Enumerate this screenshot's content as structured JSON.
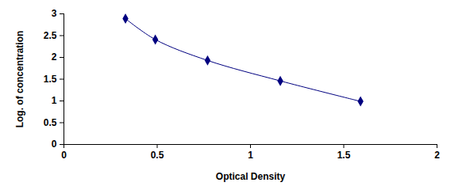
{
  "chart_data": {
    "type": "line",
    "x_label": "Optical Density",
    "y_label": "Log. of concentration",
    "x": [
      0.33,
      0.49,
      0.77,
      1.16,
      1.59
    ],
    "values": [
      2.89,
      2.41,
      1.93,
      1.46,
      0.99
    ],
    "color": "#000080",
    "marker": "diamond",
    "line_style": "solid",
    "xlim": [
      0,
      2
    ],
    "xticks": [
      0,
      0.5,
      1,
      1.5,
      2
    ],
    "ylim": [
      0,
      3
    ],
    "yticks": [
      0,
      0.5,
      1,
      1.5,
      2,
      2.5,
      3
    ],
    "grid": false
  }
}
